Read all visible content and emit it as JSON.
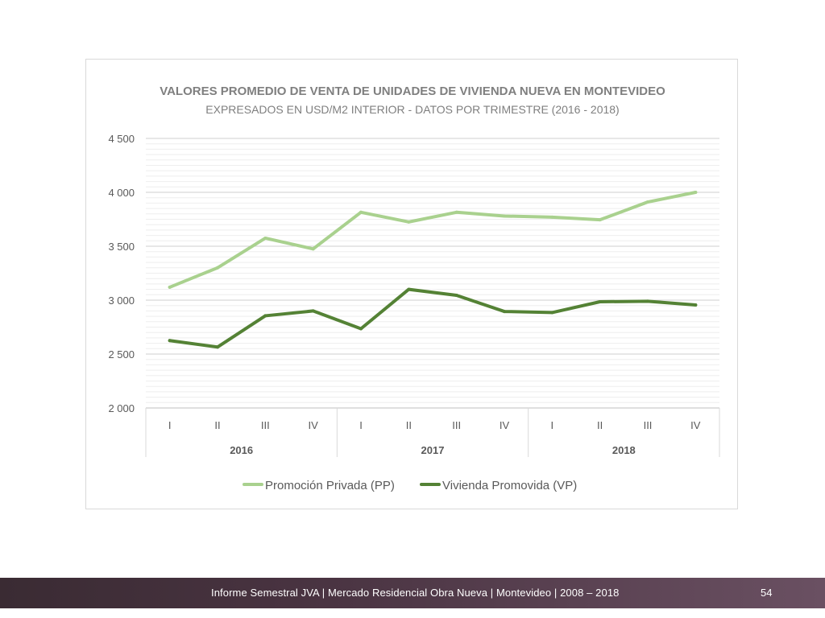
{
  "chart_data": {
    "type": "line",
    "title": "VALORES PROMEDIO DE VENTA DE UNIDADES DE VIVIENDA NUEVA EN MONTEVIDEO",
    "subtitle": "EXPRESADOS EN USD/M2 INTERIOR - DATOS POR TRIMESTRE (2016 - 2018)",
    "categories": [
      "I",
      "II",
      "III",
      "IV",
      "I",
      "II",
      "III",
      "IV",
      "I",
      "II",
      "III",
      "IV"
    ],
    "year_groups": [
      {
        "label": "2016",
        "count": 4
      },
      {
        "label": "2017",
        "count": 4
      },
      {
        "label": "2018",
        "count": 4
      }
    ],
    "ylim": [
      2000,
      4500
    ],
    "y_ticks": [
      {
        "value": 2000,
        "label": "2 000"
      },
      {
        "value": 2500,
        "label": "2 500"
      },
      {
        "value": 3000,
        "label": "3 000"
      },
      {
        "value": 3500,
        "label": "3 500"
      },
      {
        "value": 4000,
        "label": "4 000"
      },
      {
        "value": 4500,
        "label": "4 500"
      }
    ],
    "series": [
      {
        "name": "Promoción Privada (PP)",
        "color": "#a9d18e",
        "values": [
          3120,
          3300,
          3575,
          3475,
          3815,
          3725,
          3815,
          3780,
          3770,
          3745,
          3910,
          4000
        ]
      },
      {
        "name": "Vivienda Promovida (VP)",
        "color": "#548235",
        "values": [
          2625,
          2565,
          2855,
          2900,
          2735,
          3100,
          3045,
          2895,
          2885,
          2985,
          2990,
          2955
        ]
      }
    ],
    "grid": true,
    "legend_position": "bottom"
  },
  "footer": {
    "text": "Informe Semestral JVA | Mercado Residencial Obra Nueva | Montevideo | 2008 – 2018",
    "page": "54"
  }
}
